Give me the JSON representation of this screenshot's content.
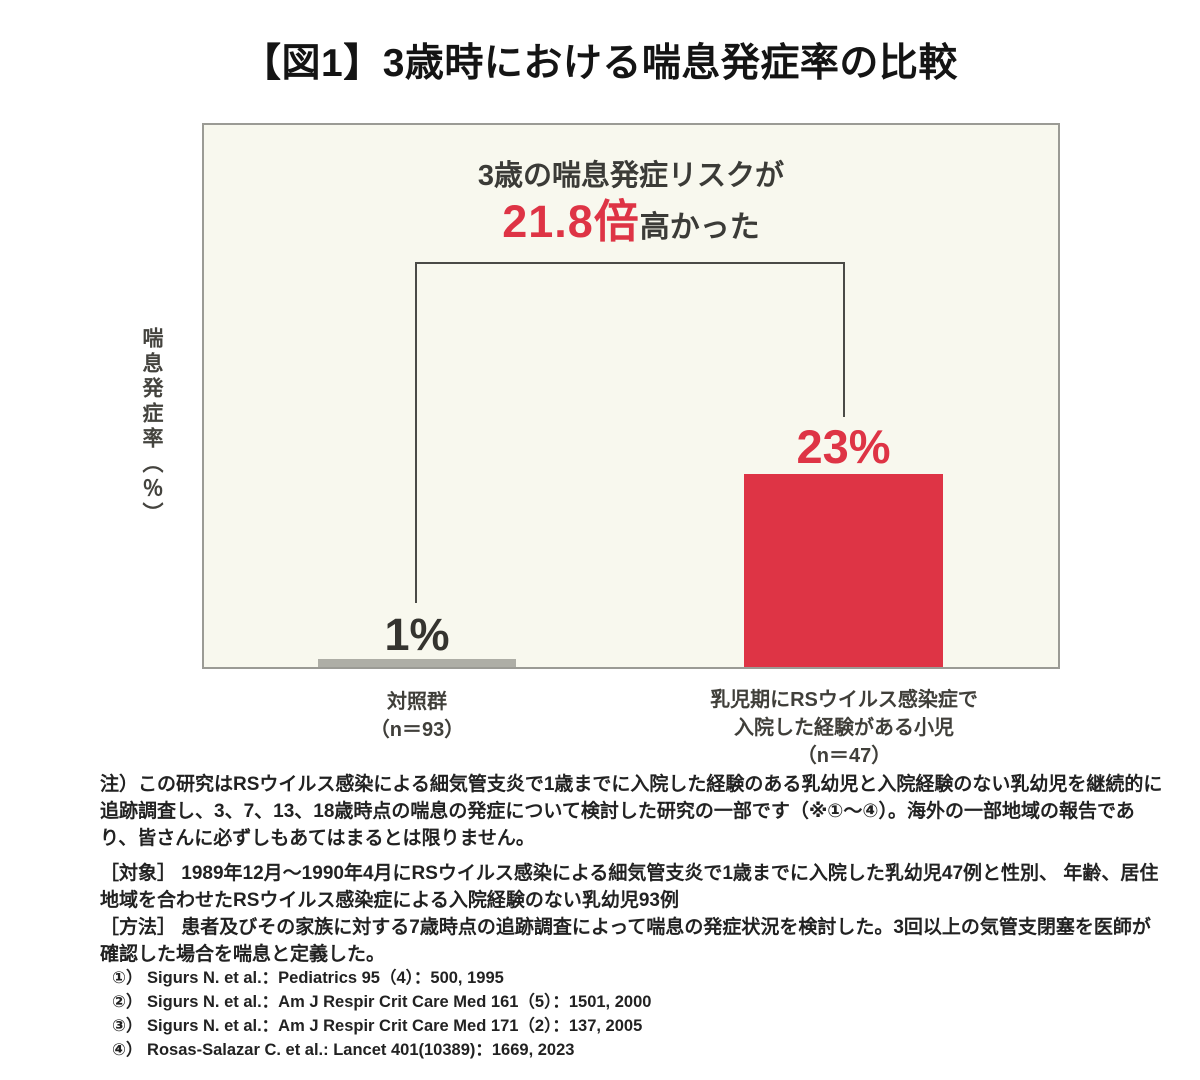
{
  "page": {
    "title": "【図1】3歳時における喘息発症率の比較",
    "background": "#FFFFFF"
  },
  "chart": {
    "panel_bg": "#F8F8EE",
    "panel_border": "#9B9B95",
    "y_axis_label": "喘息発症率（％）",
    "annotation": {
      "line1": "3歳の喘息発症リスクが",
      "ratio": "21.8倍",
      "suffix": "高かった",
      "ratio_color": "#DE3445"
    },
    "bars": [
      {
        "value_label": "1%",
        "color": "#AEAEA6",
        "label_line1": "対照群",
        "label_line2": "（n＝93）"
      },
      {
        "value_label": "23%",
        "color": "#DE3445",
        "label_line1": "乳児期にRSウイルス感染症で",
        "label_line2": "入院した経験がある小児",
        "label_line3": "（n＝47）"
      }
    ]
  },
  "chart_data": {
    "type": "bar",
    "title": "【図1】3歳時における喘息発症率の比較",
    "categories": [
      "対照群（n＝93）",
      "乳児期にRSウイルス感染症で入院した経験がある小児（n＝47）"
    ],
    "values": [
      1,
      23
    ],
    "value_labels": [
      "1%",
      "23%"
    ],
    "unit": "%",
    "xlabel": "",
    "ylabel": "喘息発症率（％）",
    "ylim": [
      0,
      25
    ],
    "bar_colors": [
      "#AEAEA6",
      "#DE3445"
    ],
    "annotation": "3歳の喘息発症リスクが21.8倍高かった",
    "ratio": 21.8,
    "grid": false,
    "legend_position": "none"
  },
  "notes": {
    "caution": "注）この研究はRSウイルス感染による細気管支炎で1歳までに入院した経験のある乳幼児と入院経験のない乳幼児を継続的に\n追跡調査し、3、7、13、18歳時点の喘息の発症について検討した研究の一部です（※①～④）。海外の一部地域の報告であ\nり、皆さんに必ずしもあてはまるとは限りません。",
    "subject_method": "［対象］ 1989年12月～1990年4月にRSウイルス感染による細気管支炎で1歳までに入院した乳幼児47例と性別、 年齢、居住\n地域を合わせたRSウイルス感染症による入院経験のない乳幼児93例\n［方法］ 患者及びその家族に対する7歳時点の追跡調査によって喘息の発症状況を検討した。3回以上の気管支閉塞を医師が\n確認した場合を喘息と定義した。"
  },
  "references": [
    "①） Sigurs N. et al.：Pediatrics 95（4）：500, 1995",
    "②） Sigurs N. et al.：Am J Respir Crit Care Med 161（5）：1501, 2000",
    "③） Sigurs N. et al.：Am J Respir Crit Care Med 171（2）：137, 2005",
    "④） Rosas-Salazar C. et al.: Lancet 401(10389)：1669, 2023"
  ]
}
